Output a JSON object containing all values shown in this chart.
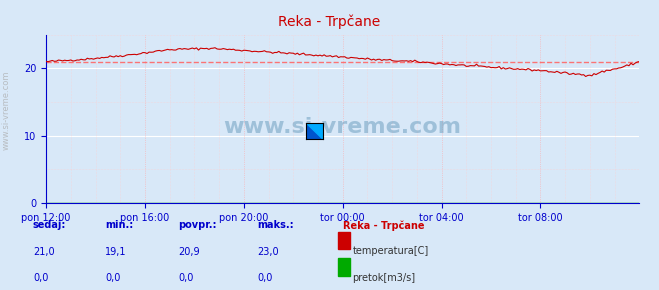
{
  "title": "Reka - Trpčane",
  "bg_color": "#d8e8f8",
  "plot_bg_color": "#d8e8f8",
  "grid_color_major": "#ffffff",
  "grid_color_minor": "#ffcccc",
  "axis_color": "#0000cc",
  "temp_line_color": "#cc0000",
  "temp_avg_color": "#ff6666",
  "flow_line_color": "#00aa00",
  "x_tick_labels": [
    "pon 12:00",
    "pon 16:00",
    "pon 20:00",
    "tor 00:00",
    "tor 04:00",
    "tor 08:00"
  ],
  "x_ticks": [
    0,
    48,
    96,
    144,
    192,
    240
  ],
  "x_max": 288,
  "y_min": 0,
  "y_max": 25,
  "y_ticks": [
    0,
    10,
    20
  ],
  "avg_temp": 20.9,
  "sedaj": {
    "temp": 21.0,
    "flow": 0.0
  },
  "min_val": {
    "temp": 19.1,
    "flow": 0.0
  },
  "povpr": {
    "temp": 20.9,
    "flow": 0.0
  },
  "maks": {
    "temp": 23.0,
    "flow": 0.0
  },
  "label_temp": "temperatura[C]",
  "label_flow": "pretok[m3/s]",
  "legend_title": "Reka - Trpčane",
  "watermark": "www.si-vreme.com",
  "left_label": "www.si-vreme.com"
}
